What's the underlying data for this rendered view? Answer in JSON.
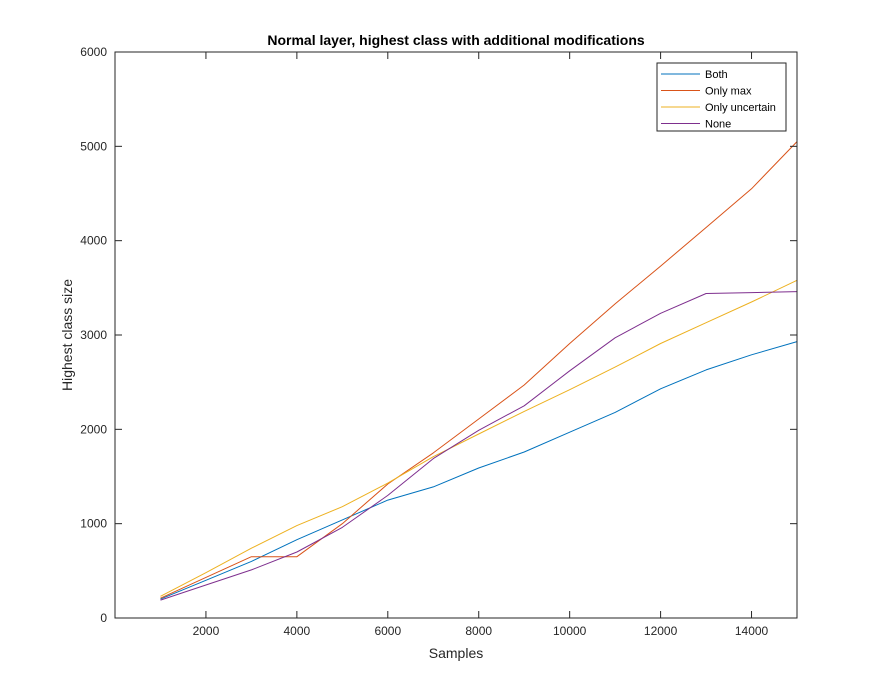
{
  "chart_data": {
    "type": "line",
    "title": "Normal layer, highest class with additional modifications",
    "xlabel": "Samples",
    "ylabel": "Highest class size",
    "xlim": [
      0,
      15000
    ],
    "ylim": [
      0,
      6000
    ],
    "xticks": [
      2000,
      4000,
      6000,
      8000,
      10000,
      12000,
      14000
    ],
    "yticks": [
      0,
      1000,
      2000,
      3000,
      4000,
      5000,
      6000
    ],
    "grid": false,
    "legend_position": "top-right",
    "x": [
      1000,
      2000,
      3000,
      4000,
      5000,
      6000,
      7000,
      8000,
      9000,
      10000,
      11000,
      12000,
      13000,
      14000,
      15000
    ],
    "series": [
      {
        "name": "Both",
        "color": "#0072BD",
        "values": [
          200,
          400,
          600,
          830,
          1040,
          1250,
          1390,
          1590,
          1760,
          1970,
          2180,
          2430,
          2630,
          2790,
          2930
        ]
      },
      {
        "name": "Only max",
        "color": "#D95319",
        "values": [
          210,
          430,
          650,
          650,
          1000,
          1420,
          1750,
          2110,
          2470,
          2910,
          3330,
          3730,
          4140,
          4550,
          5050
        ]
      },
      {
        "name": "Only uncertain",
        "color": "#EDB120",
        "values": [
          230,
          480,
          740,
          980,
          1180,
          1430,
          1710,
          1950,
          2190,
          2420,
          2660,
          2910,
          3130,
          3350,
          3580
        ]
      },
      {
        "name": "None",
        "color": "#7E2F8E",
        "values": [
          190,
          350,
          510,
          700,
          960,
          1300,
          1690,
          1990,
          2250,
          2620,
          2970,
          3230,
          3440,
          3450,
          3460
        ]
      }
    ]
  }
}
